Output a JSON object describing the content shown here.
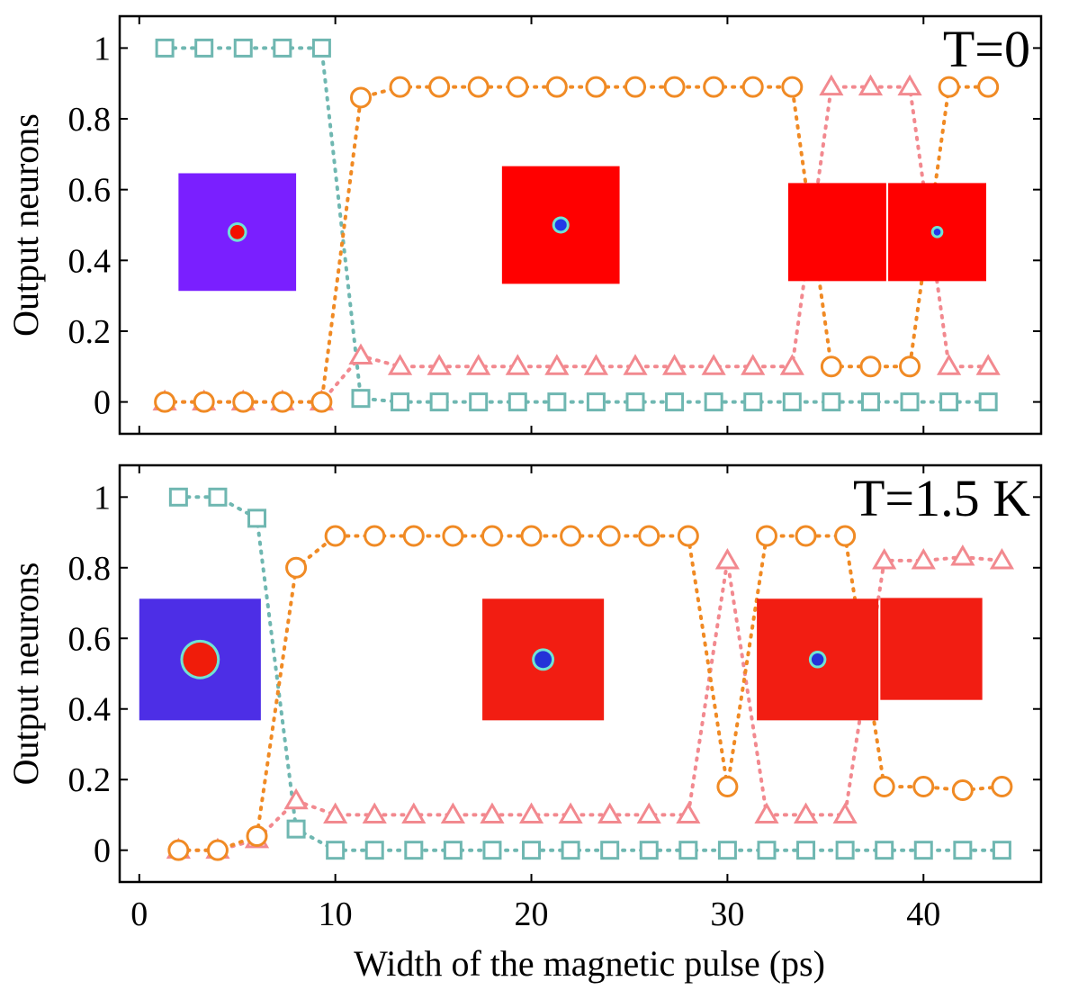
{
  "chart_data": [
    {
      "type": "line",
      "title": "T=0",
      "xlabel": "",
      "ylabel": "Output neurons",
      "xlim": [
        -1,
        46
      ],
      "ylim": [
        -0.09,
        1.09
      ],
      "yticks": [
        0,
        0.2,
        0.4,
        0.6,
        0.8,
        1
      ],
      "ytick_labels": [
        "0",
        "0.2",
        "0.4",
        "0.6",
        "0.8",
        "1"
      ],
      "xticks": [
        0,
        10,
        20,
        30,
        40
      ],
      "xtick_labels": [
        "",
        "",
        "",
        "",
        ""
      ],
      "series": [
        {
          "name": "square",
          "marker": "square",
          "color": "#6fb7b1",
          "x": [
            1.3,
            3.3,
            5.3,
            7.3,
            9.3,
            11.3,
            13.3,
            15.3,
            17.3,
            19.3,
            21.3,
            23.3,
            25.3,
            27.3,
            29.3,
            31.3,
            33.3,
            35.3,
            37.3,
            39.3,
            41.3,
            43.3
          ],
          "y": [
            1,
            1,
            1,
            1,
            1,
            0.01,
            0,
            0,
            0,
            0,
            0,
            0,
            0,
            0,
            0,
            0,
            0,
            0,
            0,
            0,
            0,
            0
          ]
        },
        {
          "name": "triangle",
          "marker": "triangle",
          "color": "#f2898f",
          "x": [
            1.3,
            3.3,
            5.3,
            7.3,
            9.3,
            11.3,
            13.3,
            15.3,
            17.3,
            19.3,
            21.3,
            23.3,
            25.3,
            27.3,
            29.3,
            31.3,
            33.3,
            35.3,
            37.3,
            39.3,
            41.3,
            43.3
          ],
          "y": [
            0,
            0,
            0,
            0,
            0,
            0.13,
            0.1,
            0.1,
            0.1,
            0.1,
            0.1,
            0.1,
            0.1,
            0.1,
            0.1,
            0.1,
            0.1,
            0.89,
            0.89,
            0.89,
            0.1,
            0.1
          ]
        },
        {
          "name": "circle",
          "marker": "circle",
          "color": "#f08a24",
          "x": [
            1.3,
            3.3,
            5.3,
            7.3,
            9.3,
            11.3,
            13.3,
            15.3,
            17.3,
            19.3,
            21.3,
            23.3,
            25.3,
            27.3,
            29.3,
            31.3,
            33.3,
            35.3,
            37.3,
            39.3,
            41.3,
            43.3
          ],
          "y": [
            0,
            0,
            0,
            0,
            0,
            0.86,
            0.89,
            0.89,
            0.89,
            0.89,
            0.89,
            0.89,
            0.89,
            0.89,
            0.89,
            0.89,
            0.89,
            0.1,
            0.1,
            0.1,
            0.89,
            0.89
          ]
        }
      ],
      "insets": [
        {
          "x": 5,
          "y": 0.48,
          "w": 6,
          "bg": "#7a1fff",
          "blob": "#f21000",
          "blob_r": 0.06
        },
        {
          "x": 21.5,
          "y": 0.5,
          "w": 6,
          "bg": "#ff0000",
          "blob": "#2238e8",
          "blob_r": 0.05
        },
        {
          "x": 35.6,
          "y": 0.48,
          "w": 5,
          "bg": "#ff0000",
          "blob": "",
          "blob_r": 0
        },
        {
          "x": 40.7,
          "y": 0.48,
          "w": 5,
          "bg": "#ff0000",
          "blob": "#2238e8",
          "blob_r": 0.035
        }
      ]
    },
    {
      "type": "line",
      "title": "T=1.5 K",
      "xlabel": "Width of the magnetic pulse (ps)",
      "ylabel": "Output neurons",
      "xlim": [
        -1,
        46
      ],
      "ylim": [
        -0.09,
        1.09
      ],
      "yticks": [
        0,
        0.2,
        0.4,
        0.6,
        0.8,
        1
      ],
      "ytick_labels": [
        "0",
        "0.2",
        "0.4",
        "0.6",
        "0.8",
        "1"
      ],
      "xticks": [
        0,
        10,
        20,
        30,
        40
      ],
      "xtick_labels": [
        "0",
        "10",
        "20",
        "30",
        "40"
      ],
      "series": [
        {
          "name": "square",
          "marker": "square",
          "color": "#6fb7b1",
          "x": [
            2,
            4,
            6,
            8,
            10,
            12,
            14,
            16,
            18,
            20,
            22,
            24,
            26,
            28,
            30,
            32,
            34,
            36,
            38,
            40,
            42,
            44
          ],
          "y": [
            1,
            1,
            0.94,
            0.06,
            0,
            0,
            0,
            0,
            0,
            0,
            0,
            0,
            0,
            0,
            0,
            0,
            0,
            0,
            0,
            0,
            0,
            0
          ]
        },
        {
          "name": "triangle",
          "marker": "triangle",
          "color": "#f2898f",
          "x": [
            2,
            4,
            6,
            8,
            10,
            12,
            14,
            16,
            18,
            20,
            22,
            24,
            26,
            28,
            30,
            32,
            34,
            36,
            38,
            40,
            42,
            44
          ],
          "y": [
            0,
            0,
            0.03,
            0.14,
            0.1,
            0.1,
            0.1,
            0.1,
            0.1,
            0.1,
            0.1,
            0.1,
            0.1,
            0.1,
            0.82,
            0.1,
            0.1,
            0.1,
            0.82,
            0.82,
            0.83,
            0.82
          ]
        },
        {
          "name": "circle",
          "marker": "circle",
          "color": "#f08a24",
          "x": [
            2,
            4,
            6,
            8,
            10,
            12,
            14,
            16,
            18,
            20,
            22,
            24,
            26,
            28,
            30,
            32,
            34,
            36,
            38,
            40,
            42,
            44
          ],
          "y": [
            0,
            0,
            0.04,
            0.8,
            0.89,
            0.89,
            0.89,
            0.89,
            0.89,
            0.89,
            0.89,
            0.89,
            0.89,
            0.89,
            0.18,
            0.89,
            0.89,
            0.89,
            0.18,
            0.18,
            0.17,
            0.18
          ]
        }
      ],
      "insets": [
        {
          "x": 3.1,
          "y": 0.54,
          "w": 6.2,
          "bg": "#4d2ee6",
          "blob": "#f01c0a",
          "blob_r": 0.14
        },
        {
          "x": 20.6,
          "y": 0.54,
          "w": 6.2,
          "bg": "#f21d12",
          "blob": "#2432d8",
          "blob_r": 0.07
        },
        {
          "x": 34.6,
          "y": 0.54,
          "w": 6.2,
          "bg": "#f21d12",
          "blob": "#2432d8",
          "blob_r": 0.05
        },
        {
          "x": 40.4,
          "y": 0.57,
          "w": 5.2,
          "bg": "#f21d12",
          "blob": "",
          "blob_r": 0
        }
      ]
    }
  ]
}
